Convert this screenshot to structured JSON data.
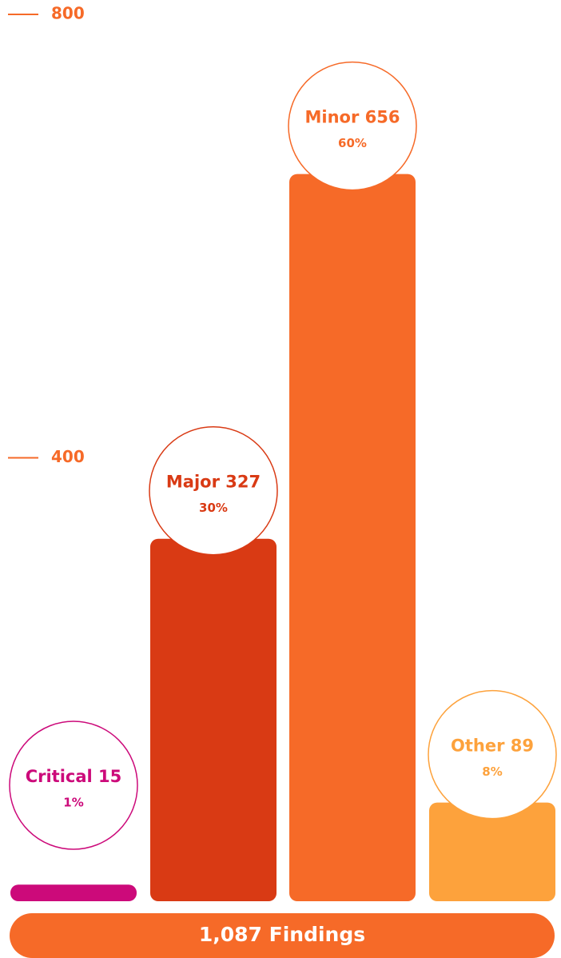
{
  "chart_data": {
    "type": "bar",
    "categories": [
      "Critical",
      "Major",
      "Minor",
      "Other"
    ],
    "values": [
      15,
      327,
      656,
      89
    ],
    "percent_labels": [
      "1%",
      "30%",
      "60%",
      "8%"
    ],
    "colors": [
      "#cc0a7a",
      "#d93a14",
      "#f66a28",
      "#fda23c"
    ],
    "ylim": [
      0,
      800
    ],
    "yticks": [
      400,
      800
    ],
    "tick_color": "#f66a28",
    "total_label": "1,087 Findings"
  }
}
